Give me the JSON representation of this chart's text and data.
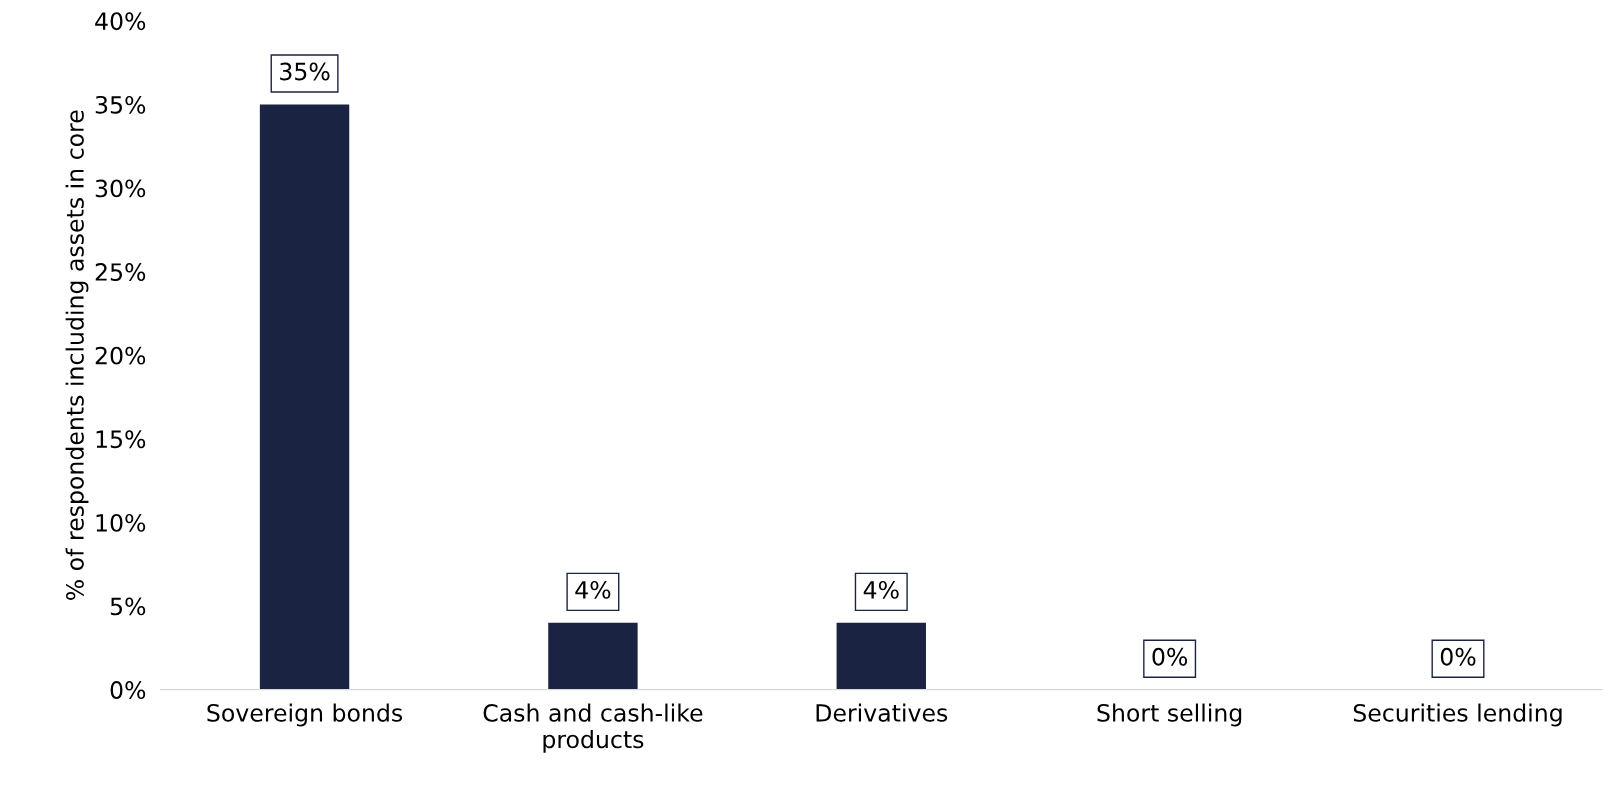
{
  "chart_data": {
    "type": "bar",
    "ylabel": "% of respondents including assets in core",
    "categories": [
      "Sovereign bonds",
      "Cash and cash-like\nproducts",
      "Derivatives",
      "Short selling",
      "Securities lending"
    ],
    "values": [
      35,
      4,
      4,
      0,
      0
    ],
    "value_labels": [
      "35%",
      "4%",
      "4%",
      "0%",
      "0%"
    ],
    "color": "#1a2341",
    "ylim": [
      0,
      40
    ],
    "yticks": [
      {
        "value": 0,
        "label": "0%"
      },
      {
        "value": 5,
        "label": "5%"
      },
      {
        "value": 10,
        "label": "10%"
      },
      {
        "value": 15,
        "label": "15%"
      },
      {
        "value": 20,
        "label": "20%"
      },
      {
        "value": 25,
        "label": "25%"
      },
      {
        "value": 30,
        "label": "30%"
      },
      {
        "value": 35,
        "label": "35%"
      },
      {
        "value": 40,
        "label": "40%"
      }
    ],
    "grid": false
  }
}
